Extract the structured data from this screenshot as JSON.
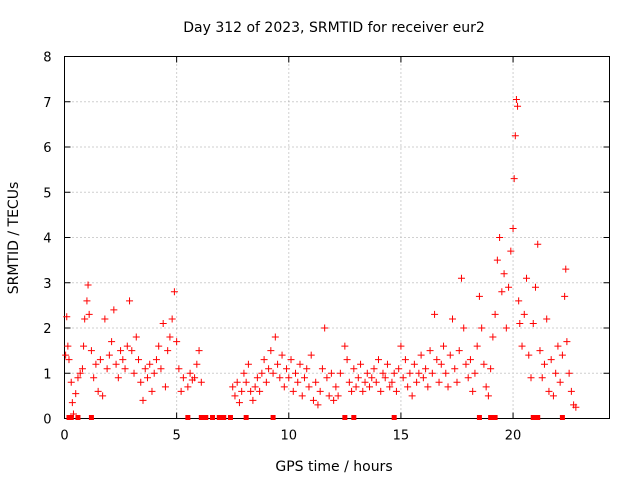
{
  "chart_data": {
    "type": "scatter",
    "title": "Day 312 of 2023, SRMTID for receiver eur2",
    "xlabel": "GPS time / hours",
    "ylabel": "SRMTID / TECUs",
    "xlim": [
      0,
      24.3
    ],
    "ylim": [
      0,
      8
    ],
    "xticks": [
      0,
      5,
      10,
      15,
      20
    ],
    "yticks": [
      0,
      1,
      2,
      3,
      4,
      5,
      6,
      7,
      8
    ],
    "grid": true,
    "marker": "+",
    "color": "#ff0000",
    "series": [
      {
        "name": "eur2",
        "points": [
          [
            0.05,
            1.4
          ],
          [
            0.1,
            2.25
          ],
          [
            0.15,
            1.6
          ],
          [
            0.2,
            1.3
          ],
          [
            0.3,
            0.8
          ],
          [
            0.35,
            0.35
          ],
          [
            0.4,
            0.1
          ],
          [
            0.5,
            0.55
          ],
          [
            0.6,
            0.9
          ],
          [
            0.7,
            1.0
          ],
          [
            0.8,
            1.1
          ],
          [
            0.85,
            1.6
          ],
          [
            0.9,
            2.2
          ],
          [
            1.0,
            2.6
          ],
          [
            1.05,
            2.95
          ],
          [
            1.1,
            2.3
          ],
          [
            1.2,
            1.5
          ],
          [
            1.3,
            0.9
          ],
          [
            1.4,
            1.2
          ],
          [
            1.5,
            0.6
          ],
          [
            1.6,
            1.3
          ],
          [
            1.7,
            0.5
          ],
          [
            1.8,
            2.2
          ],
          [
            1.9,
            1.1
          ],
          [
            2.0,
            1.4
          ],
          [
            2.1,
            1.7
          ],
          [
            2.2,
            2.4
          ],
          [
            2.3,
            1.2
          ],
          [
            2.4,
            0.9
          ],
          [
            2.5,
            1.5
          ],
          [
            2.6,
            1.3
          ],
          [
            2.7,
            1.1
          ],
          [
            2.8,
            1.6
          ],
          [
            2.9,
            2.6
          ],
          [
            3.0,
            1.5
          ],
          [
            3.1,
            1.0
          ],
          [
            3.2,
            1.8
          ],
          [
            3.3,
            1.3
          ],
          [
            3.4,
            0.8
          ],
          [
            3.5,
            0.4
          ],
          [
            3.6,
            1.1
          ],
          [
            3.7,
            0.9
          ],
          [
            3.8,
            1.2
          ],
          [
            3.9,
            0.6
          ],
          [
            4.0,
            1.0
          ],
          [
            4.1,
            1.3
          ],
          [
            4.2,
            1.6
          ],
          [
            4.3,
            1.1
          ],
          [
            4.4,
            2.1
          ],
          [
            4.5,
            0.7
          ],
          [
            4.6,
            1.5
          ],
          [
            4.7,
            1.8
          ],
          [
            4.8,
            2.2
          ],
          [
            4.9,
            2.8
          ],
          [
            5.0,
            1.7
          ],
          [
            5.1,
            1.1
          ],
          [
            5.2,
            0.6
          ],
          [
            5.3,
            0.9
          ],
          [
            5.5,
            0.7
          ],
          [
            5.6,
            1.0
          ],
          [
            5.7,
            0.85
          ],
          [
            5.8,
            0.9
          ],
          [
            5.9,
            1.2
          ],
          [
            6.0,
            1.5
          ],
          [
            6.1,
            0.8
          ],
          [
            7.5,
            0.7
          ],
          [
            7.6,
            0.5
          ],
          [
            7.7,
            0.8
          ],
          [
            7.8,
            0.35
          ],
          [
            7.9,
            0.6
          ],
          [
            8.0,
            1.0
          ],
          [
            8.1,
            0.8
          ],
          [
            8.2,
            1.2
          ],
          [
            8.3,
            0.6
          ],
          [
            8.4,
            0.4
          ],
          [
            8.5,
            0.7
          ],
          [
            8.6,
            0.9
          ],
          [
            8.7,
            0.6
          ],
          [
            8.8,
            1.0
          ],
          [
            8.9,
            1.3
          ],
          [
            9.0,
            0.8
          ],
          [
            9.1,
            1.1
          ],
          [
            9.2,
            1.5
          ],
          [
            9.3,
            1.0
          ],
          [
            9.4,
            1.8
          ],
          [
            9.5,
            1.2
          ],
          [
            9.6,
            0.9
          ],
          [
            9.7,
            1.4
          ],
          [
            9.8,
            0.7
          ],
          [
            9.9,
            1.1
          ],
          [
            10.0,
            0.9
          ],
          [
            10.1,
            1.3
          ],
          [
            10.2,
            0.6
          ],
          [
            10.3,
            1.0
          ],
          [
            10.4,
            0.8
          ],
          [
            10.5,
            1.2
          ],
          [
            10.6,
            0.5
          ],
          [
            10.7,
            0.9
          ],
          [
            10.8,
            1.1
          ],
          [
            10.9,
            0.7
          ],
          [
            11.0,
            1.4
          ],
          [
            11.1,
            0.4
          ],
          [
            11.2,
            0.8
          ],
          [
            11.3,
            0.3
          ],
          [
            11.4,
            0.6
          ],
          [
            11.5,
            1.1
          ],
          [
            11.6,
            2.0
          ],
          [
            11.7,
            0.9
          ],
          [
            11.8,
            0.5
          ],
          [
            11.9,
            1.0
          ],
          [
            12.0,
            0.4
          ],
          [
            12.1,
            0.7
          ],
          [
            12.2,
            0.5
          ],
          [
            12.3,
            1.0
          ],
          [
            12.5,
            1.6
          ],
          [
            12.6,
            1.3
          ],
          [
            12.7,
            0.8
          ],
          [
            12.8,
            0.6
          ],
          [
            12.9,
            1.1
          ],
          [
            13.0,
            0.7
          ],
          [
            13.1,
            0.9
          ],
          [
            13.2,
            1.2
          ],
          [
            13.3,
            0.6
          ],
          [
            13.4,
            0.8
          ],
          [
            13.5,
            1.0
          ],
          [
            13.6,
            0.7
          ],
          [
            13.7,
            0.9
          ],
          [
            13.8,
            1.1
          ],
          [
            13.9,
            0.8
          ],
          [
            14.0,
            1.3
          ],
          [
            14.1,
            0.6
          ],
          [
            14.2,
            1.0
          ],
          [
            14.3,
            0.9
          ],
          [
            14.4,
            1.2
          ],
          [
            14.5,
            0.7
          ],
          [
            14.6,
            0.8
          ],
          [
            14.7,
            1.0
          ],
          [
            14.8,
            0.6
          ],
          [
            14.9,
            1.1
          ],
          [
            15.0,
            1.6
          ],
          [
            15.1,
            0.9
          ],
          [
            15.2,
            1.3
          ],
          [
            15.3,
            0.7
          ],
          [
            15.4,
            1.0
          ],
          [
            15.5,
            0.5
          ],
          [
            15.6,
            1.2
          ],
          [
            15.7,
            0.8
          ],
          [
            15.8,
            1.0
          ],
          [
            15.9,
            1.4
          ],
          [
            16.0,
            0.9
          ],
          [
            16.1,
            1.1
          ],
          [
            16.2,
            0.7
          ],
          [
            16.3,
            1.5
          ],
          [
            16.4,
            1.0
          ],
          [
            16.5,
            2.3
          ],
          [
            16.6,
            1.3
          ],
          [
            16.7,
            0.8
          ],
          [
            16.8,
            1.2
          ],
          [
            16.9,
            1.6
          ],
          [
            17.0,
            1.0
          ],
          [
            17.1,
            0.7
          ],
          [
            17.2,
            1.4
          ],
          [
            17.3,
            2.2
          ],
          [
            17.4,
            1.1
          ],
          [
            17.5,
            0.8
          ],
          [
            17.6,
            1.5
          ],
          [
            17.7,
            3.1
          ],
          [
            17.8,
            2.0
          ],
          [
            17.9,
            1.2
          ],
          [
            18.0,
            0.9
          ],
          [
            18.1,
            1.3
          ],
          [
            18.2,
            0.6
          ],
          [
            18.3,
            1.0
          ],
          [
            18.4,
            1.6
          ],
          [
            18.5,
            2.7
          ],
          [
            18.6,
            2.0
          ],
          [
            18.7,
            1.2
          ],
          [
            18.8,
            0.7
          ],
          [
            18.9,
            0.5
          ],
          [
            19.0,
            1.1
          ],
          [
            19.1,
            1.8
          ],
          [
            19.2,
            2.3
          ],
          [
            19.3,
            3.5
          ],
          [
            19.4,
            4.0
          ],
          [
            19.5,
            2.8
          ],
          [
            19.6,
            3.2
          ],
          [
            19.7,
            2.0
          ],
          [
            19.8,
            2.9
          ],
          [
            19.9,
            3.7
          ],
          [
            20.0,
            4.2
          ],
          [
            20.05,
            5.3
          ],
          [
            20.1,
            6.25
          ],
          [
            20.15,
            7.05
          ],
          [
            20.2,
            6.9
          ],
          [
            20.25,
            2.6
          ],
          [
            20.3,
            2.1
          ],
          [
            20.4,
            1.6
          ],
          [
            20.5,
            2.3
          ],
          [
            20.6,
            3.1
          ],
          [
            20.7,
            1.4
          ],
          [
            20.8,
            0.9
          ],
          [
            20.9,
            2.1
          ],
          [
            21.0,
            2.9
          ],
          [
            21.1,
            3.85
          ],
          [
            21.2,
            1.5
          ],
          [
            21.3,
            0.9
          ],
          [
            21.4,
            1.2
          ],
          [
            21.5,
            2.2
          ],
          [
            21.6,
            0.6
          ],
          [
            21.7,
            1.3
          ],
          [
            21.8,
            0.5
          ],
          [
            21.9,
            1.0
          ],
          [
            22.0,
            1.6
          ],
          [
            22.1,
            0.8
          ],
          [
            22.2,
            1.4
          ],
          [
            22.3,
            2.7
          ],
          [
            22.35,
            3.3
          ],
          [
            22.4,
            1.7
          ],
          [
            22.5,
            1.0
          ],
          [
            22.6,
            0.6
          ],
          [
            22.7,
            0.3
          ],
          [
            22.8,
            0.25
          ]
        ],
        "zero_points": [
          0.2,
          0.3,
          0.6,
          1.2,
          5.5,
          6.1,
          6.3,
          6.6,
          6.9,
          7.1,
          7.4,
          8.1,
          9.3,
          12.5,
          12.9,
          14.7,
          18.5,
          19.0,
          19.2,
          20.9,
          21.1,
          22.2
        ]
      }
    ]
  }
}
